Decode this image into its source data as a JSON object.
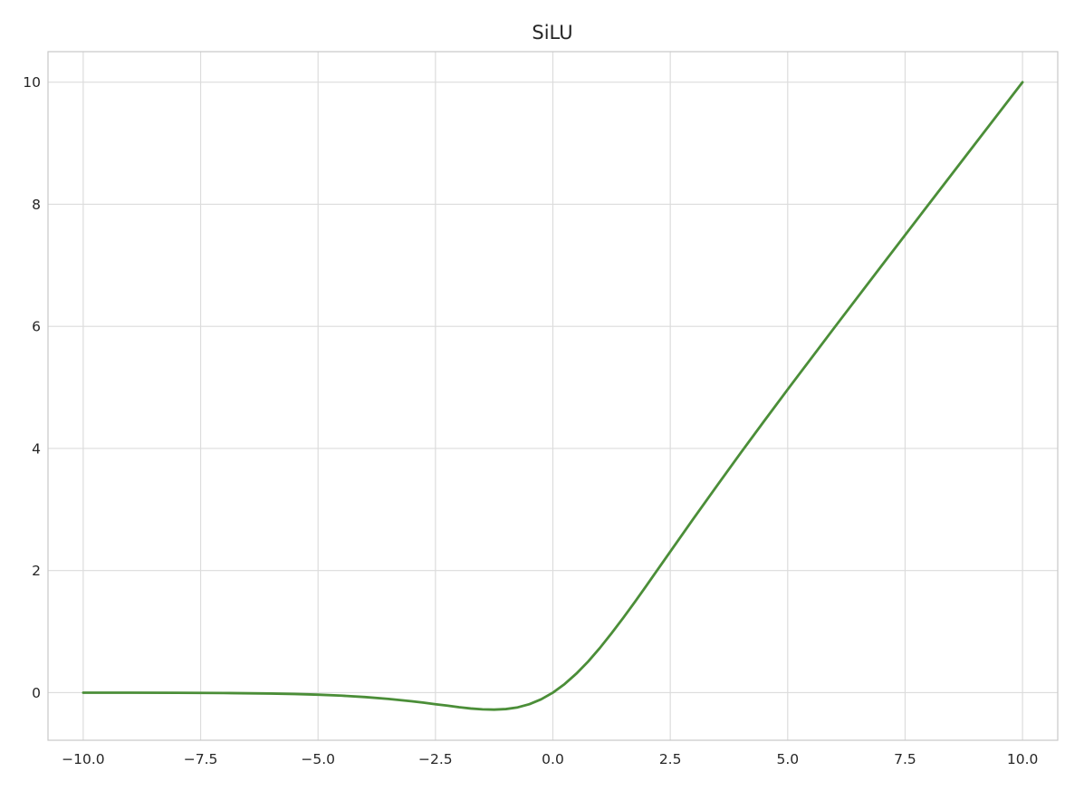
{
  "chart_data": {
    "type": "line",
    "title": "SiLU",
    "xlabel": "",
    "ylabel": "",
    "xlim": [
      -10.75,
      10.75
    ],
    "ylim": [
      -0.78,
      10.5
    ],
    "grid": true,
    "x_ticks": [
      -10.0,
      -7.5,
      -5.0,
      -2.5,
      0.0,
      2.5,
      5.0,
      7.5,
      10.0
    ],
    "x_tick_labels": [
      "−10.0",
      "−7.5",
      "−5.0",
      "−2.5",
      "0.0",
      "2.5",
      "5.0",
      "7.5",
      "10.0"
    ],
    "y_ticks": [
      0,
      2,
      4,
      6,
      8,
      10
    ],
    "y_tick_labels": [
      "0",
      "2",
      "4",
      "6",
      "8",
      "10"
    ],
    "series": [
      {
        "color": "#4b8e38",
        "x": [
          -10.0,
          -9.0,
          -8.0,
          -7.0,
          -6.0,
          -5.5,
          -5.0,
          -4.5,
          -4.0,
          -3.5,
          -3.0,
          -2.75,
          -2.5,
          -2.25,
          -2.0,
          -1.75,
          -1.5,
          -1.25,
          -1.0,
          -0.75,
          -0.5,
          -0.25,
          0.0,
          0.25,
          0.5,
          0.75,
          1.0,
          1.25,
          1.5,
          1.75,
          2.0,
          2.5,
          3.0,
          3.5,
          4.0,
          4.5,
          5.0,
          6.0,
          7.0,
          8.0,
          9.0,
          10.0
        ],
        "y": [
          -0.0005,
          -0.0011,
          -0.0027,
          -0.0064,
          -0.0148,
          -0.0224,
          -0.0335,
          -0.0494,
          -0.0719,
          -0.1023,
          -0.1423,
          -0.1646,
          -0.1896,
          -0.2118,
          -0.2384,
          -0.2596,
          -0.2736,
          -0.278,
          -0.2689,
          -0.2414,
          -0.1888,
          -0.1094,
          0.0,
          0.1406,
          0.3112,
          0.5086,
          0.7311,
          0.9734,
          1.2264,
          1.4904,
          1.7616,
          2.3104,
          2.8577,
          3.3946,
          3.9281,
          4.4502,
          4.9665,
          5.9852,
          6.9936,
          7.9973,
          8.9989,
          9.9995
        ]
      }
    ]
  }
}
